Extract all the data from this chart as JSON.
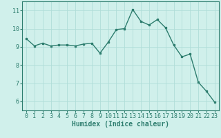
{
  "x": [
    0,
    1,
    2,
    3,
    4,
    5,
    6,
    7,
    8,
    9,
    10,
    11,
    12,
    13,
    14,
    15,
    16,
    17,
    18,
    19,
    20,
    21,
    22,
    23
  ],
  "y": [
    9.45,
    9.05,
    9.2,
    9.05,
    9.1,
    9.1,
    9.05,
    9.15,
    9.2,
    8.65,
    9.25,
    9.95,
    10.0,
    11.05,
    10.4,
    10.2,
    10.5,
    10.05,
    9.1,
    8.45,
    8.6,
    7.05,
    6.55,
    5.95
  ],
  "line_color": "#2d7d6e",
  "marker": "s",
  "marker_size": 2,
  "line_width": 1.0,
  "bg_color": "#d0f0eb",
  "grid_color": "#b0ddd8",
  "xlabel": "Humidex (Indice chaleur)",
  "xlabel_fontsize": 7,
  "tick_fontsize": 6,
  "ylim": [
    5.5,
    11.5
  ],
  "xlim": [
    -0.5,
    23.5
  ],
  "yticks": [
    6,
    7,
    8,
    9,
    10,
    11
  ],
  "xticks": [
    0,
    1,
    2,
    3,
    4,
    5,
    6,
    7,
    8,
    9,
    10,
    11,
    12,
    13,
    14,
    15,
    16,
    17,
    18,
    19,
    20,
    21,
    22,
    23
  ],
  "spine_color": "#2d7d6e",
  "axis_bottom_color": "#3a8a80"
}
